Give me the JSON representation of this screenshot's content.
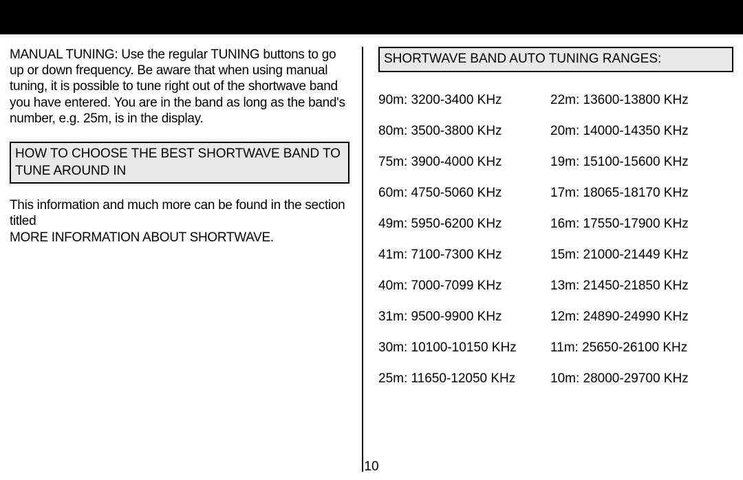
{
  "topBar": {
    "color": "#000000"
  },
  "left": {
    "manualTuning": "MANUAL TUNING: Use the regular TUNING buttons to go up or down frequency. Be aware that when using manual tuning, it is possible to tune right out of the shortwave band you have entered. You are in the band as long as the band's number, e.g. 25m, is in the display.",
    "howToBox": "HOW TO CHOOSE THE BEST SHORTWAVE BAND TO TUNE AROUND IN",
    "infoLine1": "This information and much more can be found in the section titled",
    "infoLine2": "MORE INFORMATION ABOUT SHORTWAVE."
  },
  "right": {
    "rangesTitle": "SHORTWAVE BAND AUTO TUNING RANGES:",
    "rangesCol1": [
      "90m: 3200-3400 KHz",
      "80m: 3500-3800 KHz",
      "75m: 3900-4000 KHz",
      "60m: 4750-5060 KHz",
      "49m: 5950-6200 KHz",
      "41m: 7100-7300 KHz",
      "40m: 7000-7099 KHz",
      "31m: 9500-9900 KHz",
      "30m: 10100-10150 KHz",
      "25m: 11650-12050 KHz"
    ],
    "rangesCol2": [
      "22m: 13600-13800 KHz",
      "20m: 14000-14350 KHz",
      "19m: 15100-15600 KHz",
      "17m: 18065-18170 KHz",
      "16m: 17550-17900 KHz",
      "15m: 21000-21449 KHz",
      "13m: 21450-21850 KHz",
      "12m: 24890-24990 KHz",
      "11m: 25650-26100 KHz",
      "10m: 28000-29700 KHz"
    ]
  },
  "pageNumber": "10",
  "style": {
    "pageWidth": 1080,
    "pageHeight": 698,
    "background": "#ffffff",
    "textColor": "#000000",
    "boxBackground": "#e8e8e8",
    "boxBorder": "#000000",
    "dividerColor": "#000000",
    "fontSize": 19
  }
}
